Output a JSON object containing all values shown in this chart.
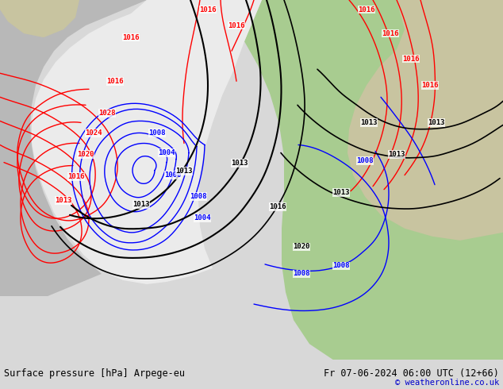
{
  "title_left": "Surface pressure [hPa] Arpege-eu",
  "title_right": "Fr 07-06-2024 06:00 UTC (12+66)",
  "copyright": "© weatheronline.co.uk",
  "footer_bg": "#d8d8d8",
  "bg_land_dark": "#c8c4a0",
  "bg_land_green": "#b8d4a0",
  "bg_ocean_grey": "#d0d0d0",
  "bg_white_low": "#e8e8e8",
  "bg_green_europe": "#a8cc90"
}
